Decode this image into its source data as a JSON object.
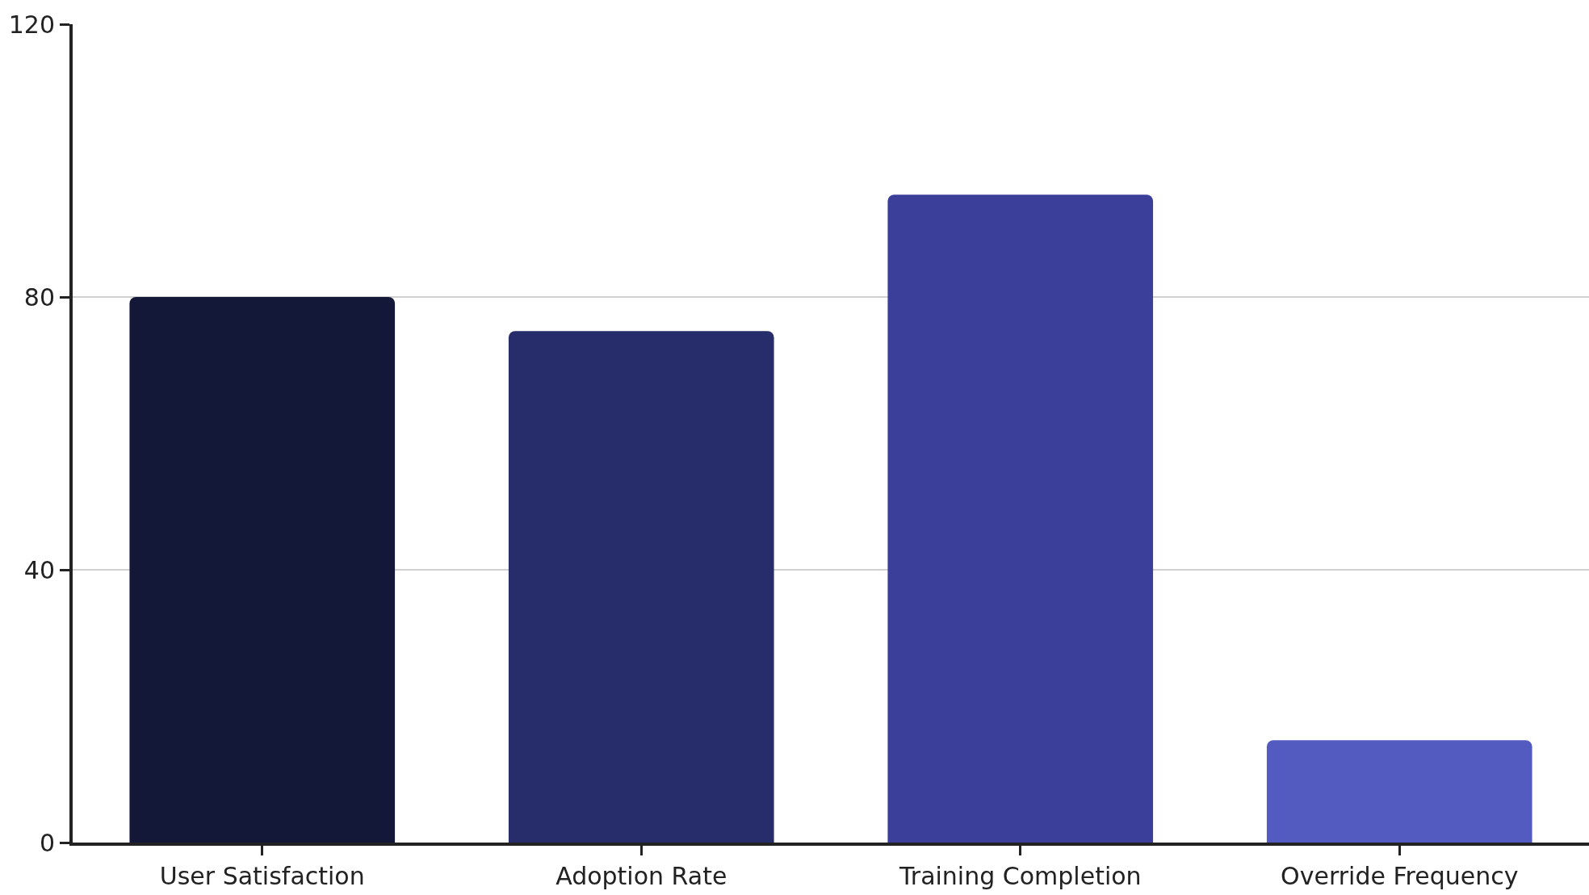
{
  "chart_data": {
    "type": "bar",
    "categories": [
      "User Satisfaction",
      "Adoption Rate",
      "Training Completion",
      "Override Frequency"
    ],
    "values": [
      80,
      75,
      95,
      15
    ],
    "colors": [
      "#141838",
      "#272c6a",
      "#3b3f9a",
      "#545bc0"
    ],
    "ylim": [
      0,
      120
    ],
    "yticks": [
      0,
      40,
      80,
      120
    ],
    "grid": "y"
  }
}
